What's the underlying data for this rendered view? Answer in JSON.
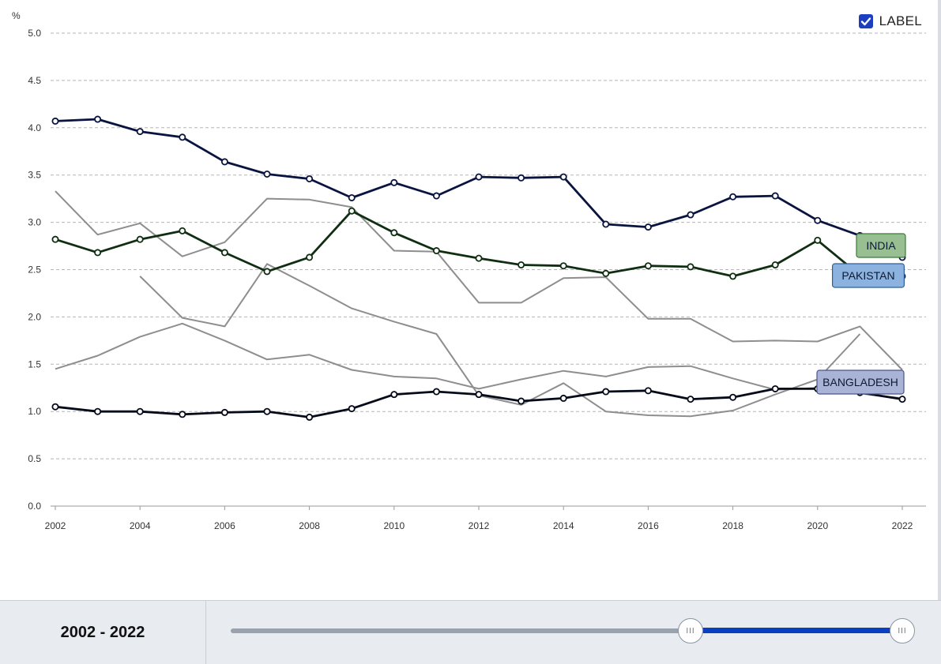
{
  "colors": {
    "india": "#0a1440",
    "pakistan": "#0f2e12",
    "bangladesh": "#050a1a",
    "other": "#8e8e8e",
    "grid": "#b5b5b5",
    "india_label_bg": "#97bf92",
    "pakistan_label_bg": "#8cb2df",
    "bangladesh_label_bg": "#a9b3d6"
  },
  "toggle": {
    "label": "LABEL",
    "checked": true
  },
  "footer": {
    "range_text": "2002 - 2022",
    "handle_glyph": "III"
  },
  "chart_data": {
    "type": "line",
    "title": "",
    "xlabel": "",
    "ylabel": "%",
    "xlim": [
      2002,
      2022
    ],
    "ylim": [
      0,
      5
    ],
    "x_ticks": [
      "2002",
      "2004",
      "2006",
      "2008",
      "2010",
      "2012",
      "2014",
      "2016",
      "2018",
      "2020",
      "2022"
    ],
    "y_ticks": [
      "0.0",
      "0.5",
      "1.0",
      "1.5",
      "2.0",
      "2.5",
      "3.0",
      "3.5",
      "4.0",
      "4.5",
      "5.0"
    ],
    "grid": true,
    "highlighted_series": [
      {
        "name": "INDIA",
        "x": [
          2002,
          2003,
          2004,
          2005,
          2006,
          2007,
          2008,
          2009,
          2010,
          2011,
          2012,
          2013,
          2014,
          2015,
          2016,
          2017,
          2018,
          2019,
          2020,
          2021,
          2022
        ],
        "y": [
          4.07,
          4.09,
          3.96,
          3.9,
          3.64,
          3.51,
          3.46,
          3.26,
          3.42,
          3.28,
          3.48,
          3.47,
          3.48,
          2.98,
          2.95,
          3.08,
          3.27,
          3.28,
          3.02,
          2.86,
          2.63
        ]
      },
      {
        "name": "PAKISTAN",
        "x": [
          2002,
          2003,
          2004,
          2005,
          2006,
          2007,
          2008,
          2009,
          2010,
          2011,
          2012,
          2013,
          2014,
          2015,
          2016,
          2017,
          2018,
          2019,
          2020,
          2021,
          2022
        ],
        "y": [
          2.82,
          2.68,
          2.82,
          2.91,
          2.68,
          2.48,
          2.63,
          3.12,
          2.89,
          2.7,
          2.62,
          2.55,
          2.54,
          2.46,
          2.54,
          2.53,
          2.43,
          2.55,
          2.81,
          2.44,
          2.43
        ]
      },
      {
        "name": "BANGLADESH",
        "x": [
          2002,
          2003,
          2004,
          2005,
          2006,
          2007,
          2008,
          2009,
          2010,
          2011,
          2012,
          2013,
          2014,
          2015,
          2016,
          2017,
          2018,
          2019,
          2020,
          2021,
          2022
        ],
        "y": [
          1.05,
          1.0,
          1.0,
          0.97,
          0.99,
          1.0,
          0.94,
          1.03,
          1.18,
          1.21,
          1.18,
          1.11,
          1.14,
          1.21,
          1.22,
          1.13,
          1.15,
          1.24,
          1.24,
          1.2,
          1.13
        ]
      }
    ],
    "background_series": [
      {
        "x": [
          2002,
          2003,
          2004,
          2005,
          2006,
          2007,
          2008,
          2009,
          2010,
          2011,
          2012,
          2013,
          2014,
          2015,
          2016,
          2017,
          2018,
          2019,
          2020,
          2021,
          2022
        ],
        "y": [
          3.33,
          2.87,
          2.99,
          2.64,
          2.79,
          3.25,
          3.24,
          3.16,
          2.7,
          2.69,
          2.15,
          2.15,
          2.41,
          2.42,
          1.98,
          1.98,
          1.74,
          1.75,
          1.74,
          1.9,
          1.44
        ]
      },
      {
        "x": [
          2004,
          2005,
          2006,
          2007,
          2008,
          2009,
          2010,
          2011,
          2012,
          2013,
          2014,
          2015,
          2016,
          2017,
          2018,
          2019,
          2020,
          2021
        ],
        "y": [
          2.43,
          1.99,
          1.9,
          2.56,
          2.33,
          2.09,
          1.95,
          1.82,
          1.17,
          1.07,
          1.3,
          1.0,
          0.96,
          0.95,
          1.01,
          1.18,
          1.34,
          1.82
        ]
      },
      {
        "x": [
          2002,
          2003,
          2004,
          2005,
          2006,
          2007,
          2008,
          2009,
          2010,
          2011,
          2012,
          2013,
          2014,
          2015,
          2016,
          2017,
          2018,
          2019,
          2020,
          2021,
          2022
        ],
        "y": [
          1.45,
          1.59,
          1.79,
          1.93,
          1.75,
          1.55,
          1.6,
          1.44,
          1.37,
          1.35,
          1.24,
          1.34,
          1.43,
          1.37,
          1.47,
          1.48,
          1.35,
          1.23,
          1.25,
          1.19,
          1.14
        ]
      }
    ]
  }
}
